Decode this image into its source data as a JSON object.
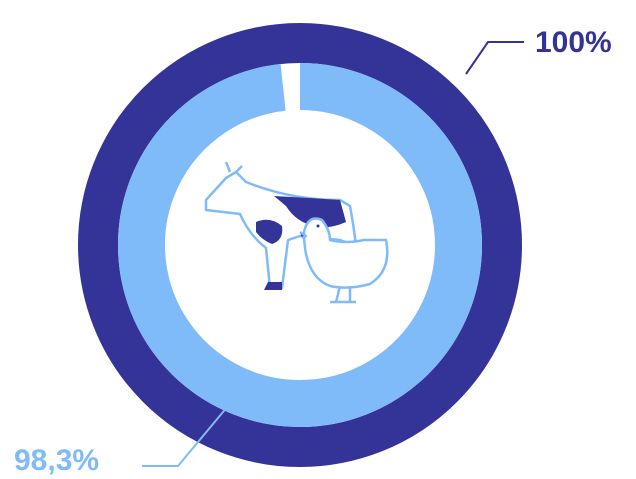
{
  "chart_data": {
    "type": "radial",
    "ylim": [
      0,
      100
    ],
    "series": [
      {
        "color": "#343397",
        "values": [
          100
        ],
        "value_labels": [
          "100%"
        ]
      },
      {
        "color": "#80bbf9",
        "values": [
          98.3
        ],
        "value_labels": [
          "98,3%"
        ]
      }
    ]
  }
}
